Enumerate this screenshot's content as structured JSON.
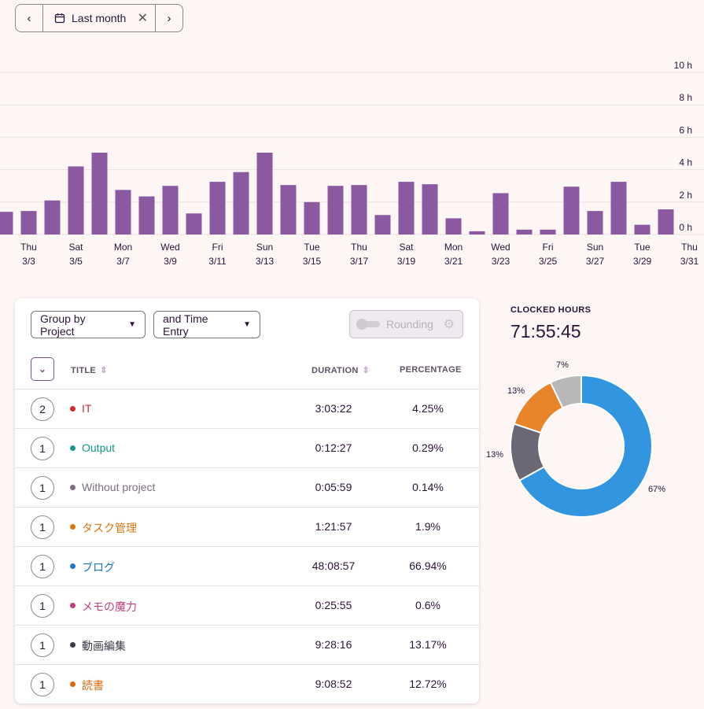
{
  "date_range": {
    "label": "Last month",
    "prev_icon": "chevron-left-icon",
    "next_icon": "chevron-right-icon",
    "calendar_icon": "calendar-icon",
    "clear_icon": "close-icon"
  },
  "chart_data": [
    {
      "type": "bar",
      "y_tick_labels": [
        "0 h",
        "2 h",
        "4 h",
        "6 h",
        "8 h",
        "10 h"
      ],
      "ylim": [
        0,
        10
      ],
      "grid": true,
      "bar_color": "#8b59a0",
      "x_labels": [
        {
          "day": "Thu",
          "date": "3/3"
        },
        {
          "day": "Sat",
          "date": "3/5"
        },
        {
          "day": "Mon",
          "date": "3/7"
        },
        {
          "day": "Wed",
          "date": "3/9"
        },
        {
          "day": "Fri",
          "date": "3/11"
        },
        {
          "day": "Sun",
          "date": "3/13"
        },
        {
          "day": "Tue",
          "date": "3/15"
        },
        {
          "day": "Thu",
          "date": "3/17"
        },
        {
          "day": "Sat",
          "date": "3/19"
        },
        {
          "day": "Mon",
          "date": "3/21"
        },
        {
          "day": "Wed",
          "date": "3/23"
        },
        {
          "day": "Fri",
          "date": "3/25"
        },
        {
          "day": "Sun",
          "date": "3/27"
        },
        {
          "day": "Tue",
          "date": "3/29"
        },
        {
          "day": "Thu",
          "date": "3/31"
        }
      ],
      "values": [
        1.4,
        1.45,
        2.1,
        4.2,
        5.05,
        2.75,
        2.35,
        3.0,
        1.3,
        3.25,
        3.85,
        5.05,
        3.05,
        2.0,
        3.0,
        3.05,
        1.2,
        3.25,
        3.1,
        1.0,
        0.2,
        2.55,
        0.3,
        0.3,
        2.95,
        1.45,
        3.25,
        0.6,
        1.55
      ]
    },
    {
      "type": "pie",
      "title": "CLOCKED HOURS",
      "total": "71:55:45",
      "slices": [
        {
          "label": "67%",
          "value": 66.94,
          "color": "#3195e0"
        },
        {
          "label": "13%",
          "value": 13.17,
          "color": "#6b6876"
        },
        {
          "label": "13%",
          "value": 12.72,
          "color": "#e8842a"
        },
        {
          "label": "7%",
          "value": 7.17,
          "color": "#b9b7b9"
        }
      ]
    }
  ],
  "controls": {
    "group_by": "Group by Project",
    "then_by": "and Time Entry",
    "rounding": "Rounding",
    "rounding_icon": "gear-icon"
  },
  "table": {
    "headers": {
      "title": "TITLE",
      "duration": "DURATION",
      "percentage": "PERCENTAGE"
    },
    "rows": [
      {
        "count": "2",
        "name": "IT",
        "color": "#d12b2b",
        "duration": "3:03:22",
        "percentage": "4.25%"
      },
      {
        "count": "1",
        "name": "Output",
        "color": "#14978a",
        "duration": "0:12:27",
        "percentage": "0.29%"
      },
      {
        "count": "1",
        "name": "Without project",
        "color": "#7b6f80",
        "duration": "0:05:59",
        "percentage": "0.14%"
      },
      {
        "count": "1",
        "name": "タスク管理",
        "color": "#d8760f",
        "duration": "1:21:57",
        "percentage": "1.9%"
      },
      {
        "count": "1",
        "name": "ブログ",
        "color": "#1877c9",
        "duration": "48:08:57",
        "percentage": "66.94%"
      },
      {
        "count": "1",
        "name": "メモの魔力",
        "color": "#c23d7d",
        "duration": "0:25:55",
        "percentage": "0.6%"
      },
      {
        "count": "1",
        "name": "動画編集",
        "color": "#3e3a4a",
        "duration": "9:28:16",
        "percentage": "13.17%"
      },
      {
        "count": "1",
        "name": "読書",
        "color": "#d8680f",
        "duration": "9:08:52",
        "percentage": "12.72%"
      }
    ]
  }
}
